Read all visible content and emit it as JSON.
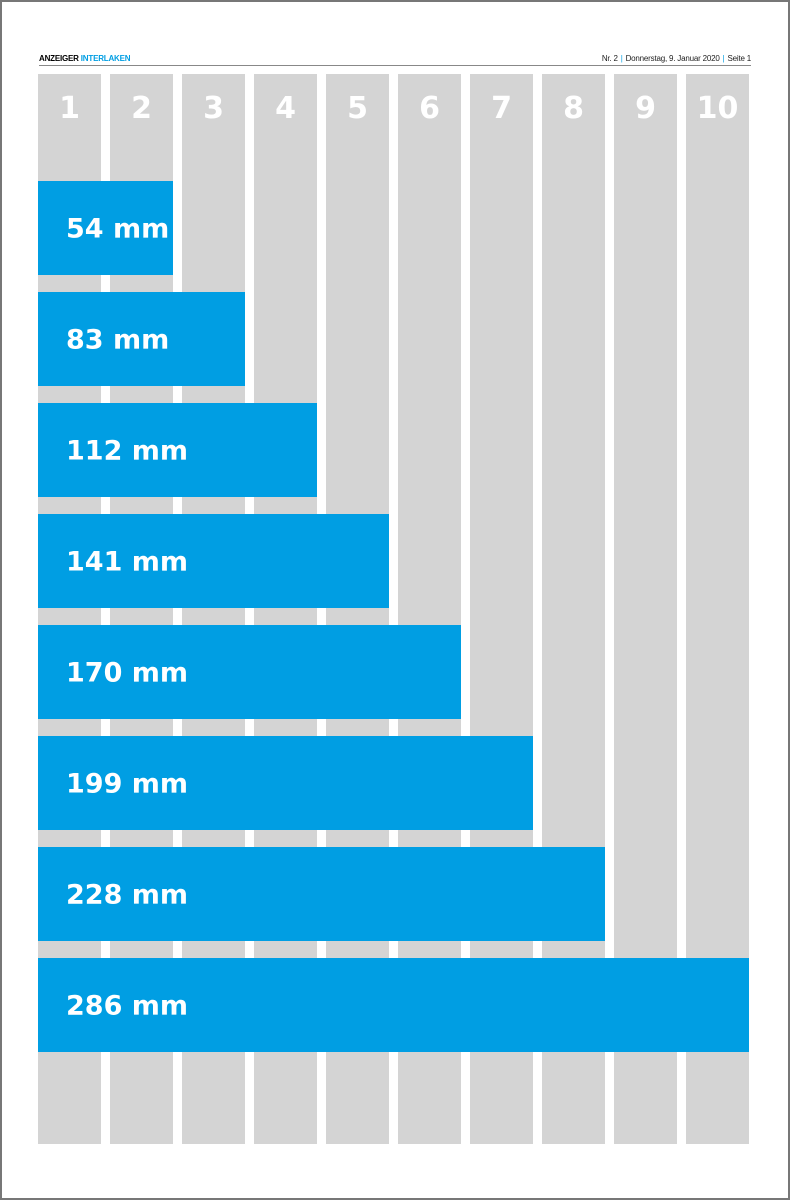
{
  "header": {
    "brand": "ANZEIGER",
    "brand_accent": "INTERLAKEN",
    "issue": "Nr. 2",
    "date": "Donnerstag, 9. Januar 2020",
    "page": "Seite 1"
  },
  "columns": [
    "1",
    "2",
    "3",
    "4",
    "5",
    "6",
    "7",
    "8",
    "9",
    "10"
  ],
  "bars": [
    "54 mm",
    "83 mm",
    "112 mm",
    "141 mm",
    "170 mm",
    "199 mm",
    "228 mm",
    "286 mm"
  ]
}
